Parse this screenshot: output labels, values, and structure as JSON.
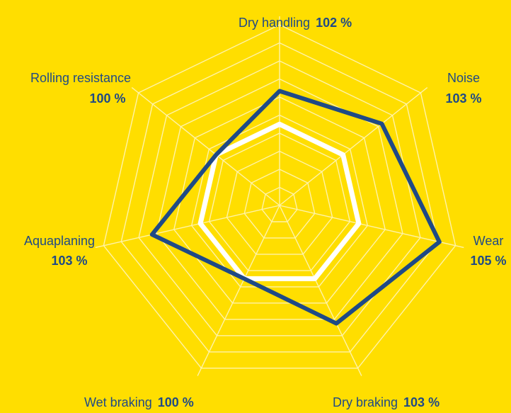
{
  "chart_data": {
    "type": "radar",
    "axes": [
      {
        "name": "Dry handling",
        "value_label": "102 %",
        "value": 102
      },
      {
        "name": "Noise",
        "value_label": "103 %",
        "value": 103
      },
      {
        "name": "Wear",
        "value_label": "105 %",
        "value": 105
      },
      {
        "name": "Dry braking",
        "value_label": "103 %",
        "value": 103
      },
      {
        "name": "Wet braking",
        "value_label": "100 %",
        "value": 100
      },
      {
        "name": "Aquaplaning",
        "value_label": "103 %",
        "value": 103
      },
      {
        "name": "Rolling resistance",
        "value_label": "100 %",
        "value": 100
      }
    ],
    "series": [
      {
        "values": [
          100,
          100,
          100,
          100,
          100,
          100,
          100
        ],
        "color": "#FFFFFF"
      },
      {
        "values": [
          102,
          103,
          105,
          103,
          100,
          103,
          100
        ],
        "color": "#1F4A86"
      }
    ],
    "grid_rings": 10,
    "grid": true,
    "legend": false
  },
  "colors": {
    "background": "#FFDE00",
    "grid": "#FFF3A8",
    "reference": "#FFFFFF",
    "product": "#1F4A86",
    "text": "#1F4A86"
  }
}
